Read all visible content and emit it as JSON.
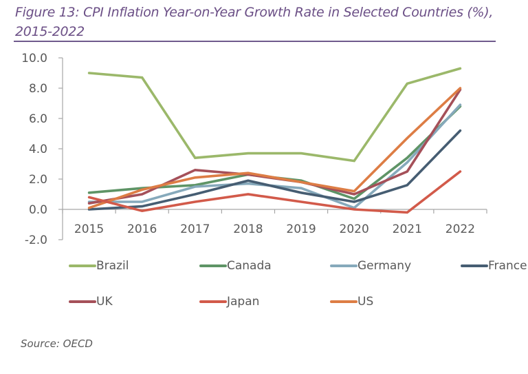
{
  "figure": {
    "title": "Figure 13: CPI Inflation Year-on-Year Growth Rate in Selected Countries (%), 2015-2022",
    "source": "Source: OECD"
  },
  "chart_data": {
    "type": "line",
    "title": "Figure 13: CPI Inflation Year-on-Year Growth Rate in Selected Countries (%), 2015-2022",
    "xlabel": "",
    "ylabel": "",
    "categories": [
      "2015",
      "2016",
      "2017",
      "2018",
      "2019",
      "2020",
      "2021",
      "2022"
    ],
    "ylim": [
      -2.0,
      10.0
    ],
    "yticks": [
      "10.0",
      "8.0",
      "6.0",
      "4.0",
      "2.0",
      "0.0",
      "-2.0"
    ],
    "ytick_values": [
      10,
      8,
      6,
      4,
      2,
      0,
      -2
    ],
    "grid": false,
    "legend_position": "bottom",
    "series": [
      {
        "name": "Brazil",
        "color": "#9bb86a",
        "values": [
          9.0,
          8.7,
          3.4,
          3.7,
          3.7,
          3.2,
          8.3,
          9.3
        ]
      },
      {
        "name": "Canada",
        "color": "#5e9466",
        "values": [
          1.1,
          1.4,
          1.6,
          2.3,
          1.9,
          0.7,
          3.4,
          6.8
        ]
      },
      {
        "name": "Germany",
        "color": "#86a9bb",
        "values": [
          0.5,
          0.5,
          1.5,
          1.7,
          1.4,
          0.1,
          3.1,
          6.9
        ]
      },
      {
        "name": "France",
        "color": "#465d72",
        "values": [
          0.0,
          0.2,
          1.0,
          1.9,
          1.1,
          0.5,
          1.6,
          5.2
        ]
      },
      {
        "name": "UK",
        "color": "#a55059",
        "values": [
          0.4,
          1.0,
          2.6,
          2.3,
          1.8,
          1.0,
          2.5,
          7.9
        ]
      },
      {
        "name": "Japan",
        "color": "#d25a4a",
        "values": [
          0.8,
          -0.1,
          0.5,
          1.0,
          0.5,
          0.0,
          -0.2,
          2.5
        ]
      },
      {
        "name": "US",
        "color": "#dd7d45",
        "values": [
          0.1,
          1.3,
          2.1,
          2.4,
          1.8,
          1.2,
          4.7,
          8.0
        ]
      }
    ]
  }
}
